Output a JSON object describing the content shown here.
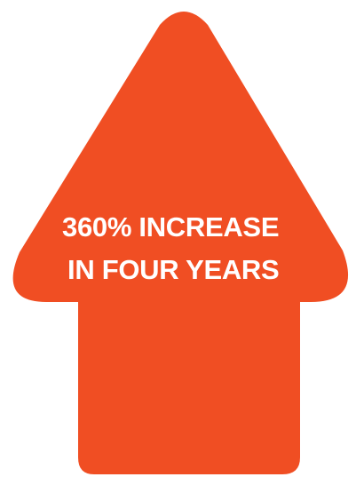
{
  "graphic": {
    "shape": "up-arrow",
    "fill_color": "#F04E23",
    "background_color": "#FFFFFF",
    "text_color": "#FFFFFF"
  },
  "headline": {
    "line1": "360% INCREASE",
    "line2": "IN FOUR YEARS"
  }
}
